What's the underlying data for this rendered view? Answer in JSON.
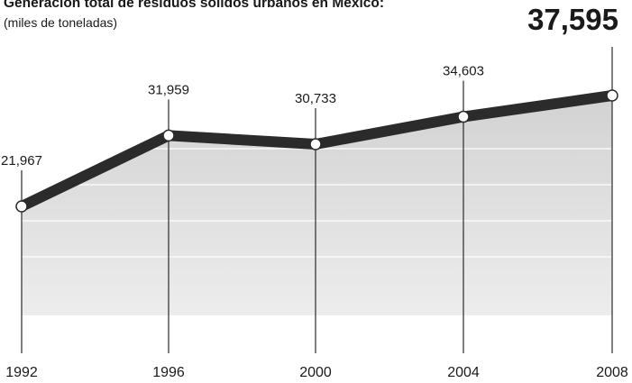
{
  "chart_data": {
    "type": "area",
    "title": "Generación total de residuos sólidos urbanos en México:",
    "subtitle": "(miles de toneladas)",
    "xlabel": "",
    "ylabel": "",
    "categories": [
      "1992",
      "1996",
      "2000",
      "2004",
      "2008"
    ],
    "values": [
      21967,
      31959,
      30733,
      34603,
      37595
    ],
    "value_labels": [
      "21,967",
      "31,959",
      "30,733",
      "34,603",
      "37,595"
    ],
    "highlight_index": 4,
    "grid": false,
    "legend": "none",
    "colors": {
      "line": "#2b2b2b",
      "area_top": "#d2d2d2",
      "area_bottom": "#ededed",
      "marker_fill": "#ffffff",
      "text": "#1a1a1a"
    }
  }
}
